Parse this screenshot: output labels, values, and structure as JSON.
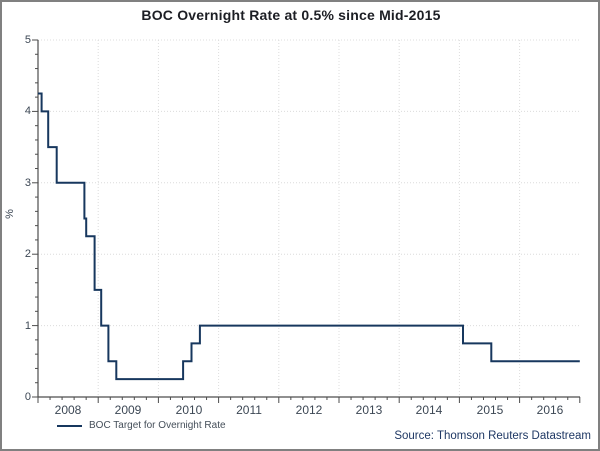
{
  "title": "BOC Overnight Rate at 0.5% since Mid-2015",
  "legend": {
    "label": "BOC Target for Overnight Rate"
  },
  "source": "Source: Thomson Reuters Datastream",
  "chart_data": {
    "type": "line",
    "subtype": "step",
    "title": "BOC Overnight Rate at 0.5% since Mid-2015",
    "xlabel": "",
    "ylabel": "%",
    "ylim": [
      0,
      5
    ],
    "yticks": [
      0,
      1,
      2,
      3,
      4,
      5
    ],
    "y_tick_labels": [
      "0",
      "1",
      "2",
      "3",
      "4",
      "5"
    ],
    "x_range": [
      2008,
      2017
    ],
    "x_tick_labels": [
      "2008",
      "2009",
      "2010",
      "2011",
      "2012",
      "2013",
      "2014",
      "2015",
      "2016"
    ],
    "minor_divisions_per_unit": 5,
    "grid": true,
    "grid_style": "dotted",
    "legend_position": "bottom-left",
    "line_color": "#17375e",
    "series": [
      {
        "name": "BOC Target for Overnight Rate",
        "color": "#17375e",
        "steps": [
          [
            2008.0,
            4.25
          ],
          [
            2008.06,
            4.0
          ],
          [
            2008.17,
            3.5
          ],
          [
            2008.31,
            3.0
          ],
          [
            2008.77,
            2.5
          ],
          [
            2008.8,
            2.25
          ],
          [
            2008.94,
            1.5
          ],
          [
            2009.05,
            1.0
          ],
          [
            2009.17,
            0.5
          ],
          [
            2009.3,
            0.25
          ],
          [
            2010.41,
            0.5
          ],
          [
            2010.55,
            0.75
          ],
          [
            2010.69,
            1.0
          ],
          [
            2015.06,
            0.75
          ],
          [
            2015.53,
            0.5
          ]
        ],
        "end_x": 2017.0
      }
    ],
    "source": "Source: Thomson Reuters Datastream"
  }
}
